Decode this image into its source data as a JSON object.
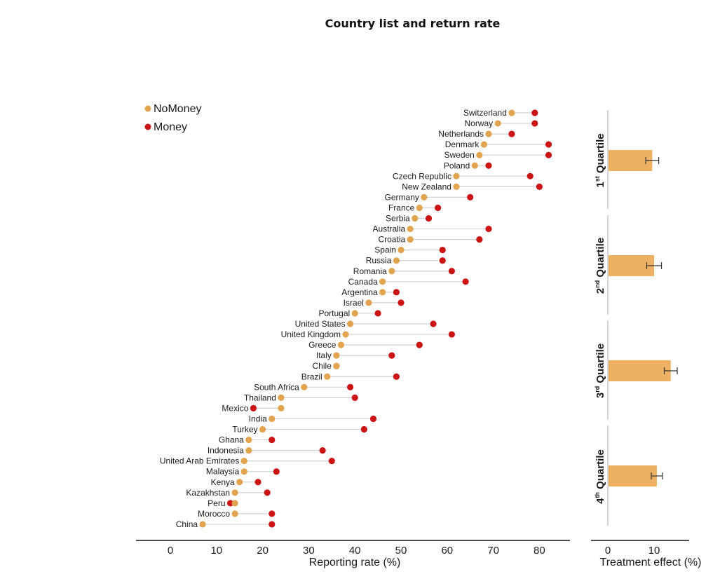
{
  "title": "Country list and return rate",
  "colors": {
    "nomoney": "#e3a450",
    "money": "#cc1414",
    "bar": "#eeb163",
    "axis": "#111111",
    "connector": "#d2d2d2",
    "errorbar": "#333333"
  },
  "chart_data": [
    {
      "type": "dumbbell",
      "title": "Country list and return rate",
      "xlabel": "Reporting rate (%)",
      "xlim": [
        -5,
        88
      ],
      "xticks": [
        0,
        10,
        20,
        30,
        40,
        50,
        60,
        70,
        80
      ],
      "legend": {
        "position": "top-left",
        "entries": [
          "NoMoney",
          "Money"
        ]
      },
      "series_names": [
        "NoMoney",
        "Money"
      ],
      "rows": [
        {
          "country": "Switzerland",
          "nomoney": 74,
          "money": 79
        },
        {
          "country": "Norway",
          "nomoney": 71,
          "money": 79
        },
        {
          "country": "Netherlands",
          "nomoney": 69,
          "money": 74
        },
        {
          "country": "Denmark",
          "nomoney": 68,
          "money": 82
        },
        {
          "country": "Sweden",
          "nomoney": 67,
          "money": 82
        },
        {
          "country": "Poland",
          "nomoney": 66,
          "money": 69
        },
        {
          "country": "Czech Republic",
          "nomoney": 62,
          "money": 78
        },
        {
          "country": "New Zealand",
          "nomoney": 62,
          "money": 80
        },
        {
          "country": "Germany",
          "nomoney": 55,
          "money": 65
        },
        {
          "country": "France",
          "nomoney": 54,
          "money": 58
        },
        {
          "country": "Serbia",
          "nomoney": 53,
          "money": 56
        },
        {
          "country": "Australia",
          "nomoney": 52,
          "money": 69
        },
        {
          "country": "Croatia",
          "nomoney": 52,
          "money": 67
        },
        {
          "country": "Spain",
          "nomoney": 50,
          "money": 59
        },
        {
          "country": "Russia",
          "nomoney": 49,
          "money": 59
        },
        {
          "country": "Romania",
          "nomoney": 48,
          "money": 61
        },
        {
          "country": "Canada",
          "nomoney": 46,
          "money": 64
        },
        {
          "country": "Argentina",
          "nomoney": 46,
          "money": 49
        },
        {
          "country": "Israel",
          "nomoney": 43,
          "money": 50
        },
        {
          "country": "Portugal",
          "nomoney": 40,
          "money": 45
        },
        {
          "country": "United States",
          "nomoney": 39,
          "money": 57
        },
        {
          "country": "United Kingdom",
          "nomoney": 38,
          "money": 61
        },
        {
          "country": "Greece",
          "nomoney": 37,
          "money": 54
        },
        {
          "country": "Italy",
          "nomoney": 36,
          "money": 48
        },
        {
          "country": "Chile",
          "nomoney": 36,
          "money": 36
        },
        {
          "country": "Brazil",
          "nomoney": 34,
          "money": 49
        },
        {
          "country": "South Africa",
          "nomoney": 29,
          "money": 39
        },
        {
          "country": "Thailand",
          "nomoney": 24,
          "money": 40
        },
        {
          "country": "Mexico",
          "nomoney": 24,
          "money": 18
        },
        {
          "country": "India",
          "nomoney": 22,
          "money": 44
        },
        {
          "country": "Turkey",
          "nomoney": 20,
          "money": 42
        },
        {
          "country": "Ghana",
          "nomoney": 17,
          "money": 22
        },
        {
          "country": "Indonesia",
          "nomoney": 17,
          "money": 33
        },
        {
          "country": "United Arab Emirates",
          "nomoney": 16,
          "money": 35
        },
        {
          "country": "Malaysia",
          "nomoney": 16,
          "money": 23
        },
        {
          "country": "Kenya",
          "nomoney": 15,
          "money": 19
        },
        {
          "country": "Kazakhstan",
          "nomoney": 14,
          "money": 21
        },
        {
          "country": "Peru",
          "nomoney": 14,
          "money": 13
        },
        {
          "country": "Morocco",
          "nomoney": 14,
          "money": 22
        },
        {
          "country": "China",
          "nomoney": 7,
          "money": 22
        }
      ]
    },
    {
      "type": "bar",
      "orientation": "horizontal",
      "xlabel": "Treatment effect (%)",
      "xlim": [
        -4,
        18
      ],
      "xticks": [
        0,
        10
      ],
      "categories": [
        {
          "ordinal": "1",
          "suffix": "st",
          "word": "Quartile"
        },
        {
          "ordinal": "2",
          "suffix": "nd",
          "word": "Quartile"
        },
        {
          "ordinal": "3",
          "suffix": "rd",
          "word": "Quartile"
        },
        {
          "ordinal": "4",
          "suffix": "th",
          "word": "Quartile"
        }
      ],
      "values": [
        9.6,
        10.0,
        13.6,
        10.6
      ],
      "error": [
        1.4,
        1.6,
        1.4,
        1.2
      ]
    }
  ]
}
